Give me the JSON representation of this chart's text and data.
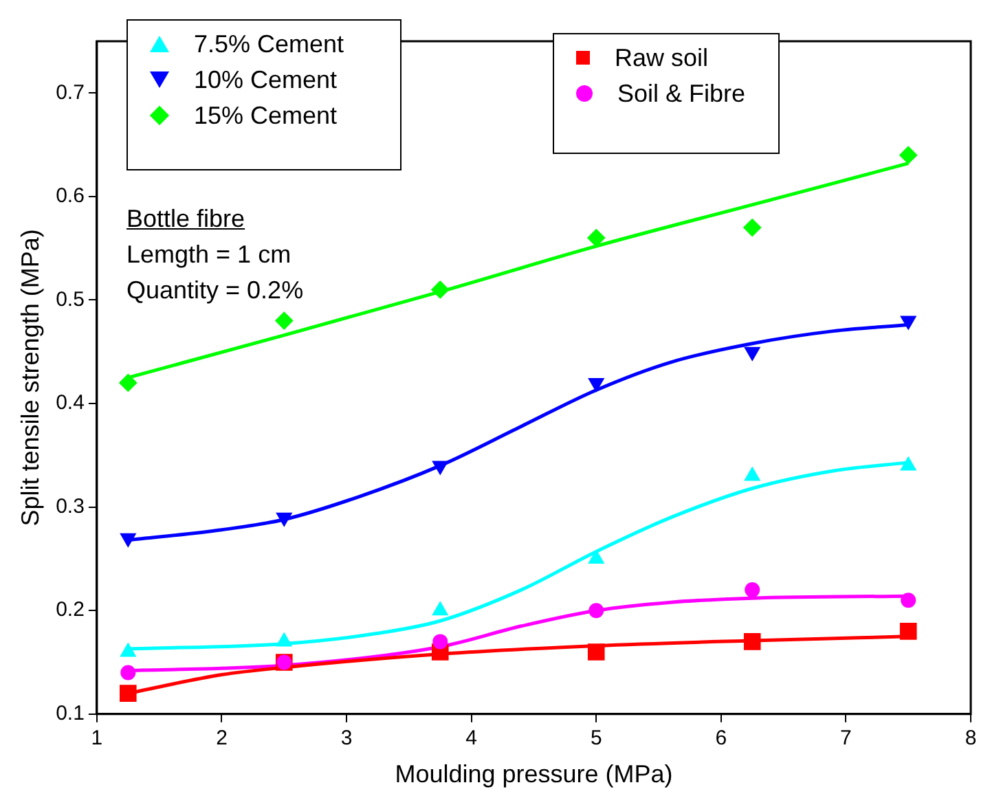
{
  "chart_data": {
    "type": "scatter",
    "xlabel": "Moulding pressure (MPa)",
    "ylabel": "Split tensile strength (MPa)",
    "xlim": [
      1,
      8
    ],
    "xticks": [
      1,
      2,
      3,
      4,
      5,
      6,
      7,
      8
    ],
    "ylim": [
      0.1,
      0.75
    ],
    "yticks": [
      0.1,
      0.2,
      0.3,
      0.4,
      0.5,
      0.6,
      0.7
    ],
    "grid": false,
    "legend": "top left",
    "annotations": [
      "Bottle fibre",
      "Lemgth = 1 cm",
      "Quantity = 0.2%"
    ],
    "series": [
      {
        "name": "7.5% Cement",
        "color": "#00ffff",
        "marker": "triangle",
        "x": [
          1.25,
          2.5,
          3.75,
          5,
          6.25,
          7.5
        ],
        "values": [
          0.16,
          0.17,
          0.2,
          0.25,
          0.33,
          0.34
        ]
      },
      {
        "name": "10% Cement",
        "color": "#0000ff",
        "marker": "triangle-down",
        "x": [
          1.25,
          2.5,
          3.75,
          5,
          6.25,
          7.5
        ],
        "values": [
          0.27,
          0.29,
          0.34,
          0.42,
          0.45,
          0.48
        ]
      },
      {
        "name": "15% Cement",
        "color": "#00ff00",
        "marker": "diamond",
        "x": [
          1.25,
          2.5,
          3.75,
          5,
          6.25,
          7.5
        ],
        "values": [
          0.42,
          0.48,
          0.51,
          0.56,
          0.57,
          0.64
        ]
      },
      {
        "name": "Raw soil",
        "color": "#ff0000",
        "marker": "square",
        "x": [
          1.25,
          2.5,
          3.75,
          5,
          6.25,
          7.5
        ],
        "values": [
          0.12,
          0.15,
          0.16,
          0.16,
          0.17,
          0.18
        ]
      },
      {
        "name": "Soil & Fibre",
        "color": "#ff00ff",
        "marker": "circle",
        "x": [
          1.25,
          2.5,
          3.75,
          5,
          6.25,
          7.5
        ],
        "values": [
          0.14,
          0.15,
          0.17,
          0.2,
          0.22,
          0.21
        ]
      },
      {
        "type": "line",
        "color": "#00ffff",
        "marker": "none",
        "x": [
          1.25,
          2.5,
          3.25,
          3.75,
          4.4,
          5,
          5.6,
          6.25,
          6.9,
          7.5
        ],
        "values": [
          0.163,
          0.168,
          0.178,
          0.19,
          0.22,
          0.257,
          0.29,
          0.318,
          0.335,
          0.343
        ]
      },
      {
        "type": "line",
        "color": "#0000ff",
        "marker": "none",
        "x": [
          1.25,
          2,
          2.5,
          3.1,
          3.75,
          4.4,
          5,
          5.6,
          6.25,
          6.9,
          7.5
        ],
        "values": [
          0.268,
          0.278,
          0.288,
          0.31,
          0.34,
          0.378,
          0.413,
          0.44,
          0.458,
          0.47,
          0.476
        ]
      },
      {
        "type": "line",
        "color": "#00ff00",
        "marker": "none",
        "x": [
          1.25,
          2.5,
          3.75,
          5,
          6.25,
          7.5
        ],
        "values": [
          0.425,
          0.466,
          0.508,
          0.552,
          0.592,
          0.632
        ]
      },
      {
        "type": "line",
        "color": "#ff0000",
        "marker": "none",
        "x": [
          1.25,
          2,
          2.5,
          3.75,
          5,
          6.25,
          7.5
        ],
        "values": [
          0.12,
          0.138,
          0.145,
          0.158,
          0.166,
          0.171,
          0.175
        ]
      },
      {
        "type": "line",
        "color": "#ff00ff",
        "marker": "none",
        "x": [
          1.25,
          2.5,
          3.75,
          4.4,
          5,
          5.6,
          6.25,
          7.5
        ],
        "values": [
          0.142,
          0.147,
          0.165,
          0.185,
          0.2,
          0.208,
          0.212,
          0.214
        ]
      }
    ]
  }
}
